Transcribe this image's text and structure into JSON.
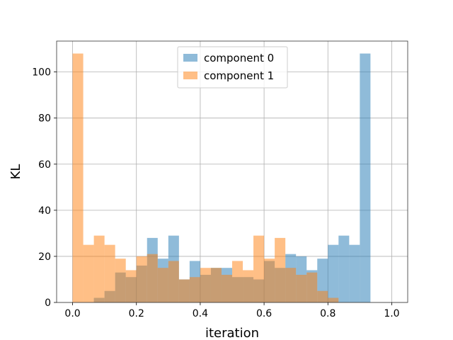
{
  "chart_data": {
    "type": "bar",
    "title": "",
    "xlabel": "iteration",
    "ylabel": "KL",
    "xlim": [
      -0.05,
      1.05
    ],
    "ylim": [
      0,
      113.4
    ],
    "xticks": [
      "0.0",
      "0.2",
      "0.4",
      "0.6",
      "0.8",
      "1.0"
    ],
    "yticks": [
      "0",
      "20",
      "40",
      "60",
      "80",
      "100"
    ],
    "grid": true,
    "legend_position": "top-center",
    "bins": {
      "start": 0.0,
      "end": 1.0,
      "count": 30
    },
    "series": [
      {
        "name": "component 0",
        "color": "#1f77b4",
        "alpha": 0.5,
        "values": [
          0,
          0,
          2,
          5,
          13,
          11,
          16,
          28,
          19,
          29,
          10,
          18,
          12,
          15,
          15,
          11,
          11,
          10,
          18,
          15,
          21,
          20,
          14,
          19,
          25,
          29,
          25,
          108,
          0,
          0
        ]
      },
      {
        "name": "component 1",
        "color": "#ff7f0e",
        "alpha": 0.5,
        "values": [
          108,
          25,
          29,
          25,
          19,
          14,
          20,
          21,
          15,
          18,
          10,
          11,
          15,
          15,
          12,
          18,
          14,
          29,
          19,
          28,
          15,
          12,
          13,
          5,
          2,
          0,
          0,
          0,
          0,
          0
        ]
      }
    ]
  }
}
